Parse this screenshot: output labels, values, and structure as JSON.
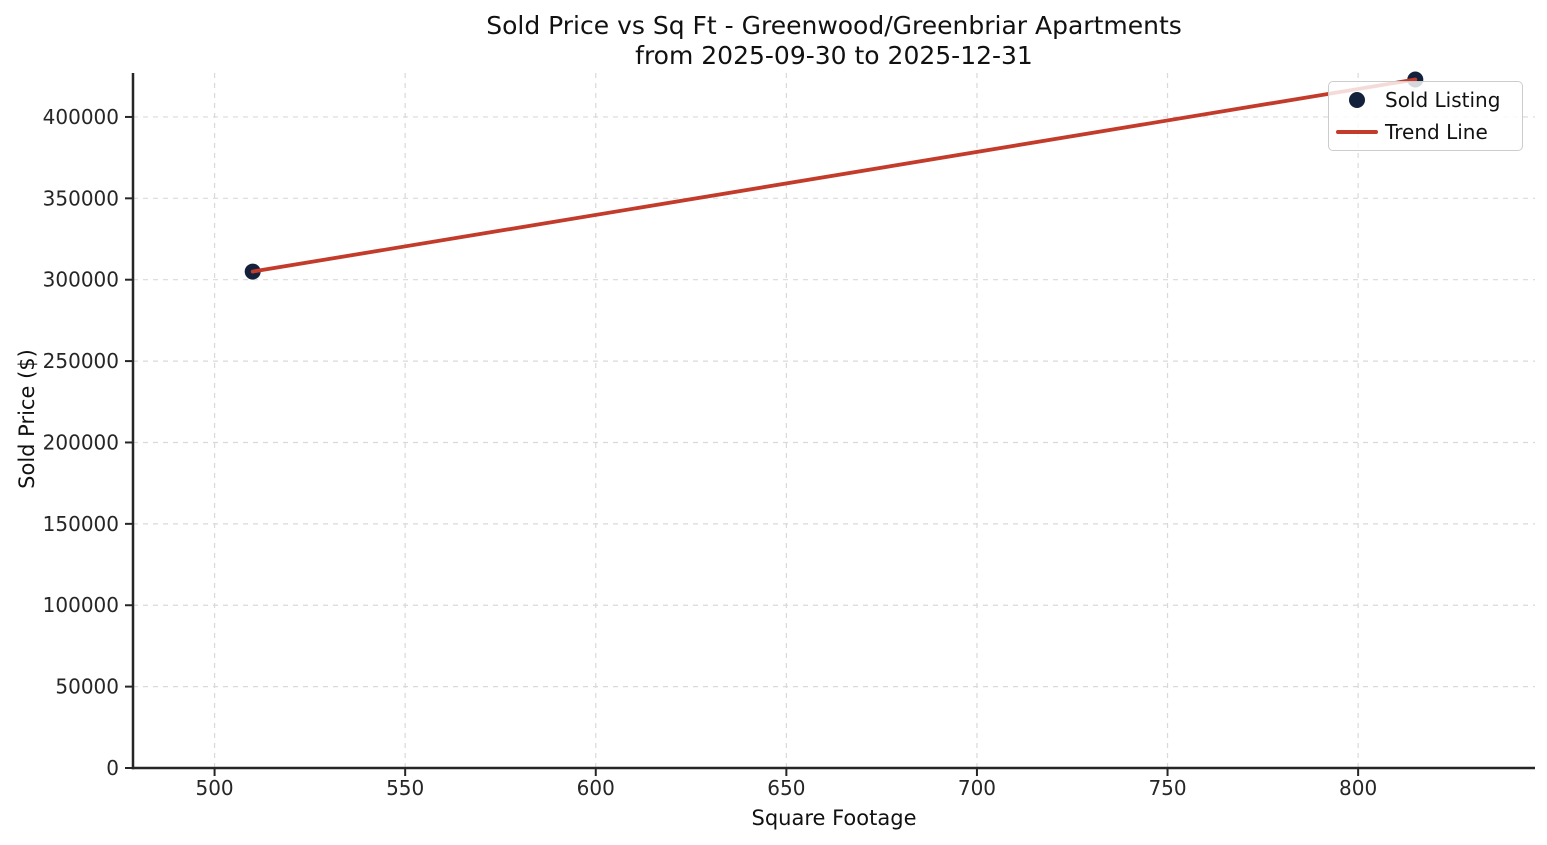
{
  "figure": {
    "title_line1": "Sold Price vs Sq Ft - Greenwood/Greenbriar Apartments",
    "title_line2": "from 2025-09-30 to 2025-12-31"
  },
  "chart_data": {
    "type": "scatter",
    "title": "Sold Price vs Sq Ft - Greenwood/Greenbriar Apartments from 2025-09-30 to 2025-12-31",
    "xlabel": "Square Footage",
    "ylabel": "Sold Price ($)",
    "xlim": [
      478.6,
      846.4
    ],
    "ylim": [
      0,
      427000
    ],
    "x_ticks": [
      500,
      550,
      600,
      650,
      700,
      750,
      800
    ],
    "y_ticks": [
      0,
      50000,
      100000,
      150000,
      200000,
      250000,
      300000,
      350000,
      400000
    ],
    "grid": true,
    "grid_style": "dashed",
    "legend_position": "upper right",
    "series": [
      {
        "name": "Sold Listing",
        "type": "scatter",
        "color": "#14213d",
        "marker_radius": 8,
        "points": [
          [
            510,
            305000
          ],
          [
            815,
            423000
          ]
        ]
      },
      {
        "name": "Trend Line",
        "type": "line",
        "color": "#c23b2b",
        "line_width": 3.8,
        "points": [
          [
            510,
            305000
          ],
          [
            815,
            423000
          ]
        ]
      }
    ]
  },
  "legend": {
    "items": [
      {
        "label": "Sold Listing",
        "marker": "dot",
        "color": "#14213d"
      },
      {
        "label": "Trend Line",
        "marker": "line",
        "color": "#c23b2b"
      }
    ]
  },
  "colors": {
    "background": "#ffffff",
    "text": "#262626",
    "spine": "#262626",
    "grid": "#d9d9d9",
    "scatter": "#14213d",
    "trend": "#c23b2b"
  }
}
